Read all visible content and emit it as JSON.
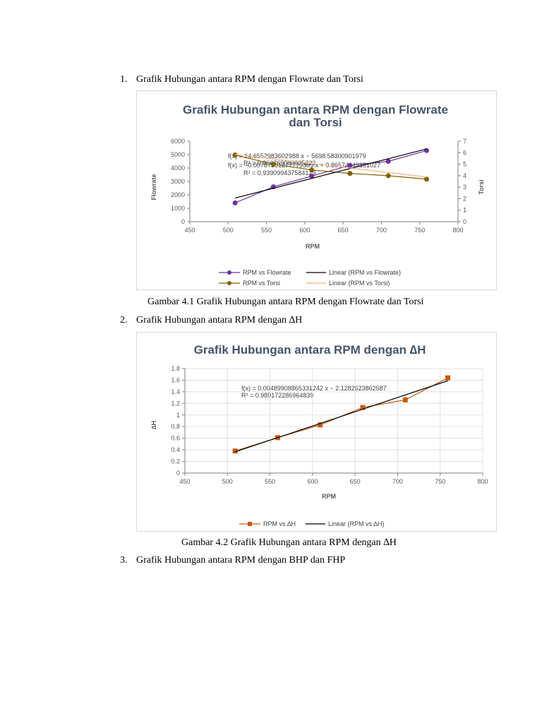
{
  "items": [
    {
      "number": "1.",
      "text": "Grafik Hubungan antara RPM dengan Flowrate dan Torsi"
    },
    {
      "number": "2.",
      "text": "Grafik Hubungan antara RPM dengan ∆H"
    },
    {
      "number": "3.",
      "text": "Grafik Hubungan antara RPM dengan BHP dan FHP"
    }
  ],
  "captions": [
    "Gambar 4.1 Grafik Hubungan antara RPM dengan Flowrate dan Torsi",
    "Gambar 4.2 Grafik Hubungan antara RPM dengan ∆H"
  ],
  "chart_data": [
    {
      "type": "line",
      "title_line1": "Grafik Hubungan antara RPM dengan  Flowrate",
      "title_line2": "dan Torsi",
      "xlabel": "RPM",
      "ylabel": "Flowrate",
      "y2label": "Torsi",
      "xlim": [
        450,
        800
      ],
      "ylim": [
        0,
        6000
      ],
      "y2lim": [
        0,
        7
      ],
      "x_ticks": [
        "450",
        "500",
        "550",
        "600",
        "650",
        "700",
        "750",
        "800"
      ],
      "y_ticks": [
        "0",
        "1000",
        "2000",
        "3000",
        "4000",
        "5000",
        "6000"
      ],
      "y2_ticks": [
        "0",
        "1",
        "2",
        "3",
        "4",
        "5",
        "6",
        "7"
      ],
      "grid": false,
      "legend_position": "bottom",
      "series": [
        {
          "name": "RPM vs Flowrate",
          "axis": "left",
          "color": "#7030a0",
          "x": [
            509,
            559,
            609,
            659,
            709,
            759
          ],
          "y": [
            1400,
            2600,
            3400,
            4200,
            4500,
            5300
          ]
        },
        {
          "name": "RPM vs Torsi",
          "axis": "right",
          "color": "#806000",
          "x": [
            509,
            559,
            609,
            659,
            709,
            759
          ],
          "y": [
            5.8,
            5.0,
            4.5,
            4.2,
            4.0,
            3.7
          ]
        }
      ],
      "trendlines": [
        {
          "name": "Linear (RPM vs Flowrate)",
          "axis": "left",
          "color": "#000000",
          "slope": 14.6552983602988,
          "intercept": -5698.58300901979
        },
        {
          "name": "Linear (RPM vs Torsi)",
          "axis": "right",
          "color": "#f4b183",
          "slope": -0.00788,
          "intercept": 9.86574049351027
        }
      ],
      "annotations": [
        "f(x) = 14.6552983602988 x − 5698.58300901979",
        "R² = 0.966769089925222",
        "f(x) = −0.00787261277773385 x + 9.86574049351027",
        "R² = 0.939099437584129"
      ]
    },
    {
      "type": "line",
      "title": "Grafik Hubungan antara RPM dengan ∆H",
      "xlabel": "RPM",
      "ylabel": "∆H",
      "xlim": [
        450,
        800
      ],
      "ylim": [
        0,
        1.8
      ],
      "x_ticks": [
        "450",
        "500",
        "550",
        "600",
        "650",
        "700",
        "750",
        "800"
      ],
      "y_ticks": [
        "0",
        "0.2",
        "0.4",
        "0.6",
        "0.8",
        "1",
        "1.2",
        "1.4",
        "1.6",
        "1.8"
      ],
      "grid": true,
      "legend_position": "bottom",
      "series": [
        {
          "name": "RPM vs ∆H",
          "color": "#c55a11",
          "x": [
            509,
            559,
            609,
            659,
            709,
            759
          ],
          "y": [
            0.38,
            0.61,
            0.83,
            1.13,
            1.26,
            1.64
          ]
        }
      ],
      "trendlines": [
        {
          "name": "Linear (RPM vs ∆H)",
          "color": "#000000",
          "slope": 0.00489908865331242,
          "intercept": -2.1282623862587
        }
      ],
      "annotations": [
        "f(x) = 0.00489908865331242 x − 2.1282623862587",
        "R² = 0.989172286964839"
      ]
    }
  ]
}
